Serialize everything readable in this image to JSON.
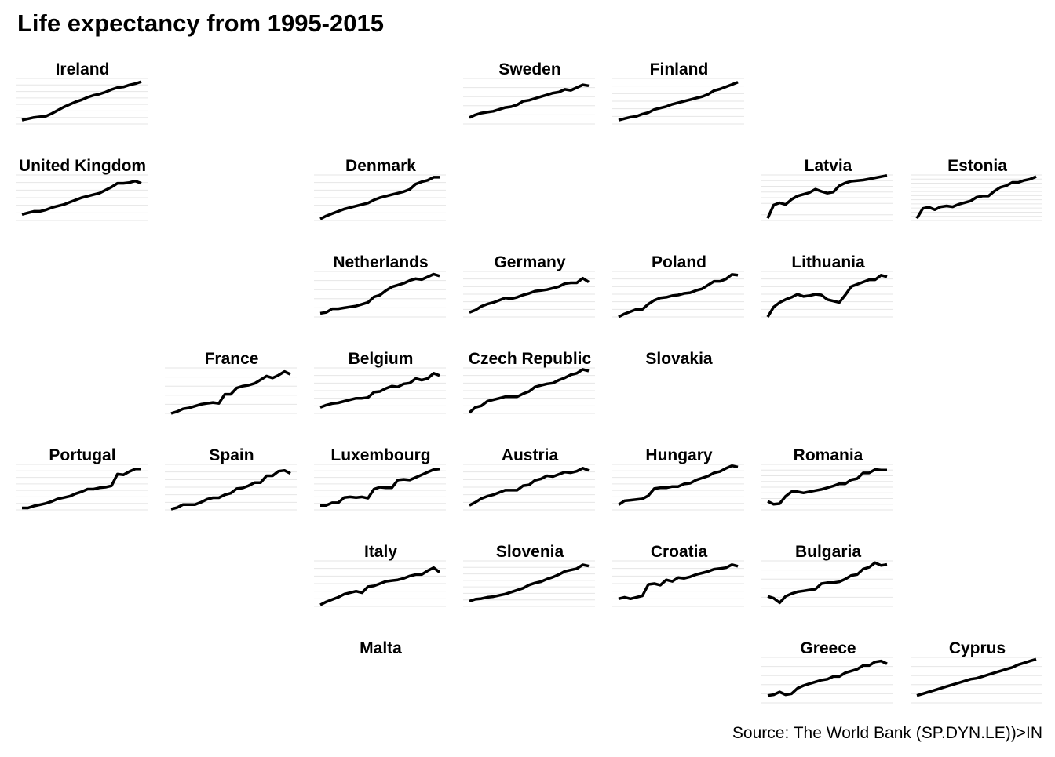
{
  "chart_data": {
    "type": "line",
    "title": "Life expectancy from 1995-2015",
    "caption": "Source: The World Bank (SP.DYN.LE))>IN",
    "x": [
      1995,
      1996,
      1997,
      1998,
      1999,
      2000,
      2001,
      2002,
      2003,
      2004,
      2005,
      2006,
      2007,
      2008,
      2009,
      2010,
      2011,
      2012,
      2013,
      2014,
      2015
    ],
    "xlim": [
      1995,
      2015
    ],
    "grid": true,
    "color": "#000000",
    "facets": [
      {
        "title": "Ireland",
        "values": [
          75.6,
          75.8,
          76.0,
          76.1,
          76.2,
          76.6,
          77.1,
          77.6,
          78.0,
          78.4,
          78.7,
          79.1,
          79.4,
          79.6,
          79.9,
          80.3,
          80.6,
          80.7,
          81.0,
          81.2,
          81.5
        ],
        "ylim": [
          75,
          82
        ],
        "yticks": [
          75,
          76,
          77,
          78,
          79,
          80,
          81,
          82
        ]
      },
      {
        "title": "Sweden",
        "values": [
          78.7,
          79.0,
          79.2,
          79.3,
          79.4,
          79.6,
          79.8,
          79.9,
          80.1,
          80.5,
          80.6,
          80.8,
          81.0,
          81.2,
          81.4,
          81.5,
          81.8,
          81.7,
          82.0,
          82.3,
          82.2
        ],
        "ylim": [
          78,
          83
        ],
        "yticks": [
          78,
          79,
          80,
          81,
          82,
          83
        ]
      },
      {
        "title": "Finland",
        "values": [
          76.5,
          76.7,
          76.9,
          77.0,
          77.3,
          77.5,
          77.9,
          78.1,
          78.3,
          78.6,
          78.8,
          79.0,
          79.2,
          79.4,
          79.6,
          79.9,
          80.4,
          80.6,
          80.9,
          81.2,
          81.5
        ],
        "ylim": [
          76,
          82
        ],
        "yticks": [
          76,
          77,
          78,
          79,
          80,
          81,
          82
        ]
      },
      {
        "title": "United Kingdom",
        "values": [
          76.8,
          77.0,
          77.2,
          77.2,
          77.4,
          77.7,
          77.9,
          78.1,
          78.4,
          78.7,
          79.0,
          79.2,
          79.4,
          79.6,
          80.0,
          80.4,
          80.9,
          80.9,
          81.0,
          81.2,
          80.9
        ],
        "ylim": [
          76,
          82
        ],
        "yticks": [
          76,
          77,
          78,
          79,
          80,
          81,
          82
        ]
      },
      {
        "title": "Denmark",
        "values": [
          75.2,
          75.6,
          75.9,
          76.2,
          76.5,
          76.7,
          76.9,
          77.1,
          77.3,
          77.7,
          78.0,
          78.2,
          78.4,
          78.6,
          78.8,
          79.1,
          79.8,
          80.1,
          80.3,
          80.7,
          80.7
        ],
        "ylim": [
          75,
          81
        ],
        "yticks": [
          75,
          76,
          77,
          78,
          79,
          80,
          81
        ]
      },
      {
        "title": "Latvia",
        "values": [
          66.4,
          68.7,
          69.1,
          68.8,
          69.7,
          70.3,
          70.6,
          70.9,
          71.5,
          71.1,
          70.8,
          71.0,
          72.1,
          72.6,
          72.9,
          73.0,
          73.1,
          73.3,
          73.5,
          73.7,
          73.9
        ],
        "ylim": [
          66,
          74
        ],
        "yticks": [
          66,
          67,
          68,
          69,
          70,
          71,
          72,
          73,
          74
        ]
      },
      {
        "title": "Estonia",
        "values": [
          67.5,
          69.9,
          70.2,
          69.6,
          70.3,
          70.5,
          70.3,
          70.9,
          71.3,
          71.7,
          72.6,
          72.9,
          72.9,
          74.1,
          75.0,
          75.4,
          76.2,
          76.2,
          76.7,
          77.0,
          77.6
        ],
        "ylim": [
          67,
          78
        ],
        "yticks": [
          67,
          68,
          69,
          70,
          71,
          72,
          73,
          74,
          75,
          76,
          77,
          78
        ]
      },
      {
        "title": "Netherlands",
        "values": [
          77.4,
          77.5,
          77.9,
          77.9,
          78.0,
          78.1,
          78.2,
          78.4,
          78.6,
          79.2,
          79.4,
          79.9,
          80.3,
          80.5,
          80.7,
          81.0,
          81.2,
          81.1,
          81.4,
          81.7,
          81.5
        ],
        "ylim": [
          77,
          82
        ],
        "yticks": [
          77,
          78,
          79,
          80,
          81,
          82
        ]
      },
      {
        "title": "Germany",
        "values": [
          76.6,
          76.9,
          77.4,
          77.7,
          77.9,
          78.2,
          78.5,
          78.4,
          78.6,
          78.9,
          79.1,
          79.4,
          79.5,
          79.6,
          79.8,
          80.0,
          80.4,
          80.5,
          80.5,
          81.1,
          80.6
        ],
        "ylim": [
          76,
          82
        ],
        "yticks": [
          76,
          77,
          78,
          79,
          80,
          81,
          82
        ]
      },
      {
        "title": "Poland",
        "values": [
          72.0,
          72.4,
          72.7,
          73.0,
          73.0,
          73.7,
          74.2,
          74.5,
          74.6,
          74.8,
          74.9,
          75.1,
          75.2,
          75.5,
          75.7,
          76.2,
          76.7,
          76.7,
          77.0,
          77.6,
          77.5
        ],
        "ylim": [
          72,
          78
        ],
        "yticks": [
          72,
          73,
          74,
          75,
          76,
          77,
          78
        ]
      },
      {
        "title": "Lithuania",
        "values": [
          69.0,
          70.3,
          70.9,
          71.3,
          71.6,
          72.0,
          71.7,
          71.8,
          72.0,
          71.9,
          71.3,
          71.1,
          70.9,
          71.9,
          73.0,
          73.3,
          73.6,
          73.9,
          73.9,
          74.5,
          74.3
        ],
        "ylim": [
          69,
          75
        ],
        "yticks": [
          69,
          70,
          71,
          72,
          73,
          74,
          75
        ]
      },
      {
        "title": "France",
        "values": [
          78.0,
          78.2,
          78.5,
          78.6,
          78.8,
          79.0,
          79.1,
          79.2,
          79.1,
          80.1,
          80.1,
          80.8,
          81.0,
          81.1,
          81.3,
          81.7,
          82.1,
          81.9,
          82.2,
          82.6,
          82.3
        ],
        "ylim": [
          78,
          83
        ],
        "yticks": [
          78,
          79,
          80,
          81,
          82,
          83
        ]
      },
      {
        "title": "Belgium",
        "values": [
          76.8,
          77.1,
          77.3,
          77.4,
          77.6,
          77.8,
          78.0,
          78.0,
          78.1,
          78.8,
          78.9,
          79.3,
          79.6,
          79.5,
          79.9,
          80.0,
          80.6,
          80.4,
          80.6,
          81.3,
          81.0
        ],
        "ylim": [
          76,
          82
        ],
        "yticks": [
          76,
          77,
          78,
          79,
          80,
          81,
          82
        ]
      },
      {
        "title": "Czech Republic",
        "values": [
          73.1,
          73.8,
          74.0,
          74.6,
          74.8,
          75.0,
          75.2,
          75.2,
          75.2,
          75.6,
          75.9,
          76.5,
          76.7,
          76.9,
          77.0,
          77.4,
          77.7,
          78.1,
          78.3,
          78.8,
          78.6
        ],
        "ylim": [
          73,
          79
        ],
        "yticks": [
          73,
          74,
          75,
          76,
          77,
          78,
          79
        ]
      },
      {
        "title": "Slovakia"
      },
      {
        "title": "Portugal",
        "values": [
          75.3,
          75.3,
          75.6,
          75.8,
          76.0,
          76.3,
          76.7,
          76.9,
          77.1,
          77.5,
          77.8,
          78.2,
          78.2,
          78.4,
          78.5,
          78.7,
          80.5,
          80.4,
          80.9,
          81.3,
          81.3
        ],
        "ylim": [
          75,
          82
        ],
        "yticks": [
          75,
          76,
          77,
          78,
          79,
          80,
          81,
          82
        ]
      },
      {
        "title": "Spain",
        "values": [
          78.1,
          78.3,
          78.7,
          78.7,
          78.7,
          79.0,
          79.4,
          79.6,
          79.6,
          80.0,
          80.2,
          80.8,
          80.9,
          81.2,
          81.6,
          81.6,
          82.5,
          82.5,
          83.1,
          83.2,
          82.8
        ],
        "ylim": [
          78,
          84
        ],
        "yticks": [
          78,
          79,
          80,
          81,
          82,
          83,
          84
        ]
      },
      {
        "title": "Luxembourg",
        "values": [
          76.7,
          76.7,
          77.1,
          77.1,
          77.9,
          78.0,
          77.9,
          78.0,
          77.8,
          79.2,
          79.5,
          79.4,
          79.4,
          80.6,
          80.7,
          80.6,
          81.0,
          81.4,
          81.8,
          82.2,
          82.3
        ],
        "ylim": [
          76,
          83
        ],
        "yticks": [
          76,
          77,
          78,
          79,
          80,
          81,
          82,
          83
        ]
      },
      {
        "title": "Austria",
        "values": [
          76.6,
          77.0,
          77.5,
          77.8,
          78.0,
          78.3,
          78.6,
          78.6,
          78.6,
          79.2,
          79.3,
          79.9,
          80.1,
          80.5,
          80.4,
          80.7,
          81.0,
          80.9,
          81.1,
          81.5,
          81.2
        ],
        "ylim": [
          76,
          82
        ],
        "yticks": [
          76,
          77,
          78,
          79,
          80,
          81,
          82
        ]
      },
      {
        "title": "Hungary",
        "values": [
          69.8,
          70.4,
          70.5,
          70.6,
          70.7,
          71.2,
          72.3,
          72.4,
          72.4,
          72.6,
          72.6,
          73.0,
          73.1,
          73.6,
          73.9,
          74.2,
          74.7,
          74.9,
          75.4,
          75.8,
          75.6
        ],
        "ylim": [
          69,
          76
        ],
        "yticks": [
          69,
          70,
          71,
          72,
          73,
          74,
          75,
          76
        ]
      },
      {
        "title": "Romania",
        "values": [
          69.5,
          69.0,
          69.1,
          70.4,
          71.2,
          71.2,
          71.0,
          71.2,
          71.4,
          71.6,
          71.9,
          72.2,
          72.6,
          72.6,
          73.3,
          73.5,
          74.5,
          74.5,
          75.1,
          75.0,
          75.0
        ],
        "ylim": [
          68,
          76
        ],
        "yticks": [
          68,
          69,
          70,
          71,
          72,
          73,
          74,
          75,
          76
        ]
      },
      {
        "title": "Italy",
        "values": [
          78.2,
          78.6,
          78.9,
          79.2,
          79.6,
          79.8,
          80.0,
          79.8,
          80.6,
          80.7,
          81.0,
          81.3,
          81.4,
          81.5,
          81.7,
          82.0,
          82.2,
          82.2,
          82.7,
          83.1,
          82.5
        ],
        "ylim": [
          78,
          84
        ],
        "yticks": [
          78,
          79,
          80,
          81,
          82,
          83,
          84
        ]
      },
      {
        "title": "Slovenia",
        "values": [
          74.8,
          75.1,
          75.2,
          75.4,
          75.5,
          75.7,
          75.9,
          76.2,
          76.5,
          76.8,
          77.3,
          77.6,
          77.8,
          78.2,
          78.5,
          78.9,
          79.4,
          79.6,
          79.8,
          80.4,
          80.2
        ],
        "ylim": [
          74,
          81
        ],
        "yticks": [
          74,
          75,
          76,
          77,
          78,
          79,
          80,
          81
        ]
      },
      {
        "title": "Croatia",
        "values": [
          73.0,
          73.2,
          73.0,
          73.2,
          73.4,
          74.9,
          75.0,
          74.8,
          75.5,
          75.3,
          75.8,
          75.7,
          75.9,
          76.2,
          76.4,
          76.6,
          76.9,
          77.0,
          77.1,
          77.5,
          77.3
        ],
        "ylim": [
          72,
          78
        ],
        "yticks": [
          72,
          73,
          74,
          75,
          76,
          77,
          78
        ]
      },
      {
        "title": "Bulgaria",
        "values": [
          71.1,
          70.9,
          70.4,
          71.1,
          71.4,
          71.6,
          71.7,
          71.8,
          71.9,
          72.5,
          72.6,
          72.6,
          72.7,
          73.0,
          73.4,
          73.5,
          74.1,
          74.3,
          74.8,
          74.5,
          74.6
        ],
        "ylim": [
          70,
          75
        ],
        "yticks": [
          70,
          71,
          72,
          73,
          74,
          75
        ]
      },
      {
        "title": "Malta"
      },
      {
        "title": "Greece",
        "values": [
          77.8,
          77.9,
          78.2,
          77.9,
          78.0,
          78.6,
          78.9,
          79.1,
          79.3,
          79.5,
          79.6,
          79.9,
          79.9,
          80.3,
          80.5,
          80.7,
          81.1,
          81.1,
          81.5,
          81.6,
          81.3
        ],
        "ylim": [
          77,
          82
        ],
        "yticks": [
          77,
          78,
          79,
          80,
          81,
          82
        ]
      },
      {
        "title": "Cyprus",
        "values": [
          76.8,
          77.0,
          77.2,
          77.4,
          77.6,
          77.8,
          78.0,
          78.2,
          78.4,
          78.6,
          78.7,
          78.9,
          79.1,
          79.3,
          79.5,
          79.7,
          79.9,
          80.2,
          80.4,
          80.6,
          80.8
        ],
        "ylim": [
          76,
          81
        ],
        "yticks": [
          76,
          77,
          78,
          79,
          80,
          81
        ]
      }
    ]
  }
}
